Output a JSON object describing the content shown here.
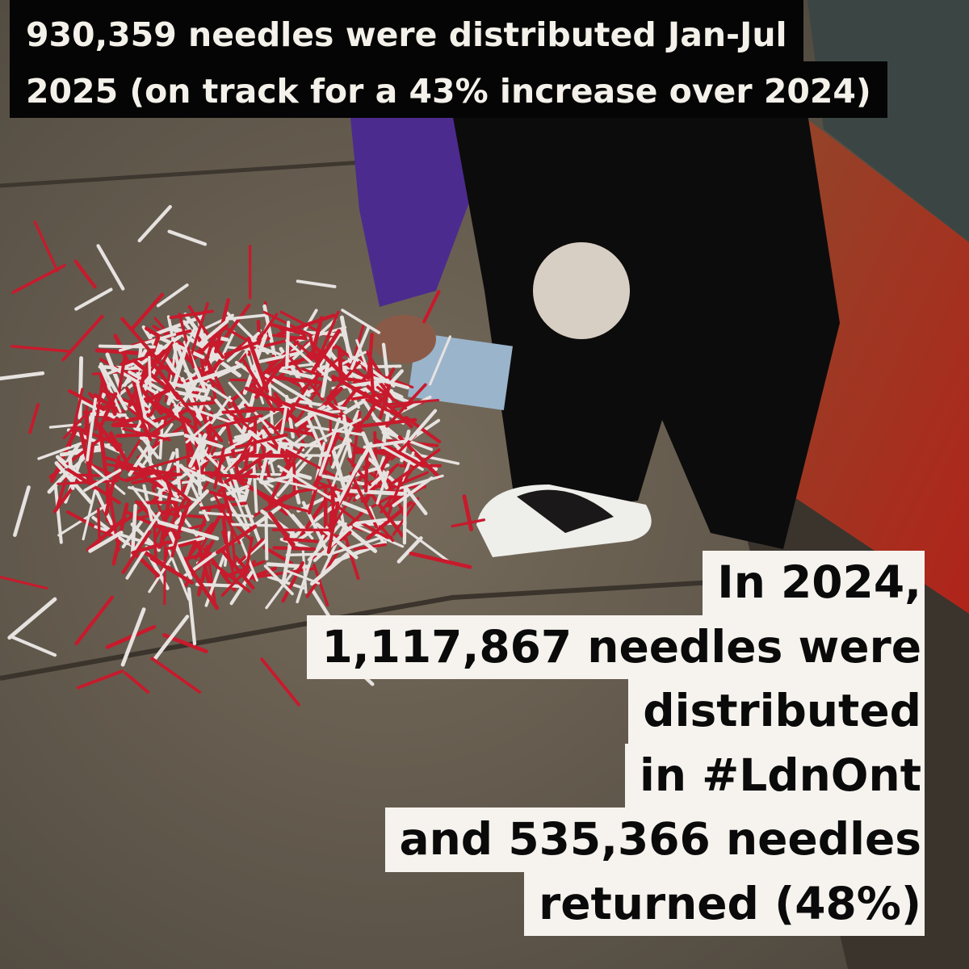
{
  "top_caption": {
    "lines": [
      "930,359 needles were distributed Jan-Jul",
      "2025 (on track for a 43% increase over 2024)"
    ]
  },
  "bottom_caption": {
    "lines": [
      "In 2024,",
      "1,117,867 needles were",
      "distributed",
      "in #LdnOnt",
      "and 535,366 needles",
      "returned (48%)"
    ]
  }
}
